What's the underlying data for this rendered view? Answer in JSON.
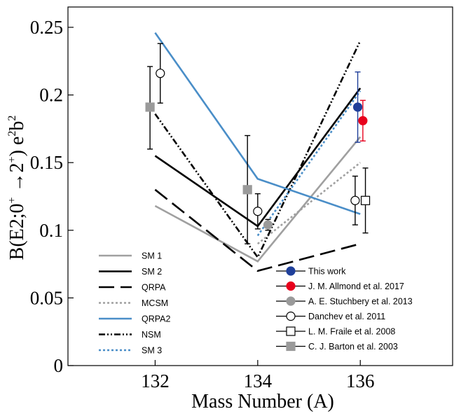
{
  "chart_data": {
    "type": "line",
    "xlabel": "Mass Number (A)",
    "ylabel_parts": {
      "prefix": "B(E2;0",
      "sup1": "+",
      "arrow": " →2",
      "sup2": "+",
      "mid": ") e",
      "sup3": "2",
      "b": "b",
      "sup4": "2"
    },
    "xlim": [
      130.3,
      137.8
    ],
    "ylim": [
      0,
      0.265
    ],
    "xticks": [
      {
        "value": 132,
        "label": "132"
      },
      {
        "value": 134,
        "label": "134"
      },
      {
        "value": 136,
        "label": "136"
      }
    ],
    "yticks": [
      {
        "value": 0,
        "label": "0"
      },
      {
        "value": 0.05,
        "label": "0.05"
      },
      {
        "value": 0.1,
        "label": "0.1"
      },
      {
        "value": 0.15,
        "label": "0.15"
      },
      {
        "value": 0.2,
        "label": "0.2"
      },
      {
        "value": 0.25,
        "label": "0.25"
      }
    ],
    "grid": false,
    "theory_series": [
      {
        "name": "SM 1",
        "color": "#a0a0a0",
        "dash": "",
        "x": [
          132,
          134,
          136
        ],
        "y": [
          0.118,
          0.077,
          0.169
        ]
      },
      {
        "name": "SM 2",
        "color": "#000000",
        "dash": "",
        "x": [
          132,
          134,
          136
        ],
        "y": [
          0.155,
          0.103,
          0.205
        ]
      },
      {
        "name": "QRPA",
        "color": "#000000",
        "dash": "22,9",
        "x": [
          132,
          134,
          136
        ],
        "y": [
          0.13,
          0.07,
          0.09
        ]
      },
      {
        "name": "MCSM",
        "color": "#a0a0a0",
        "dash": "3,3",
        "x": [
          134,
          136
        ],
        "y": [
          0.09,
          0.15
        ]
      },
      {
        "name": "QRPA2",
        "color": "#4a8ec8",
        "dash": "",
        "x": [
          132,
          134,
          136
        ],
        "y": [
          0.246,
          0.138,
          0.112
        ]
      },
      {
        "name": "NSM",
        "color": "#000000",
        "dash": "9,3,2,3,2,3",
        "x": [
          132,
          134,
          136
        ],
        "y": [
          0.186,
          0.08,
          0.24
        ]
      },
      {
        "name": "SM 3",
        "color": "#4a8ec8",
        "dash": "3,3",
        "x": [
          134,
          136
        ],
        "y": [
          0.096,
          0.203
        ]
      }
    ],
    "experimental_series": [
      {
        "name": "This work",
        "marker": "circle",
        "fill": "#1f3f9a",
        "stroke": "#1f3f9a",
        "errcolor": "#1f3f9a",
        "points": [
          {
            "x": 135.95,
            "y": 0.191,
            "lo": 0.165,
            "hi": 0.217
          }
        ]
      },
      {
        "name": "J. M. Allmond et al. 2017",
        "marker": "circle",
        "fill": "#e8001c",
        "stroke": "#e8001c",
        "errcolor": "#e8001c",
        "points": [
          {
            "x": 136.05,
            "y": 0.181,
            "lo": 0.166,
            "hi": 0.196
          }
        ]
      },
      {
        "name": "A. E. Stuchbery et al. 2013",
        "marker": "circle",
        "fill": "#9a9a9a",
        "stroke": "#9a9a9a",
        "errcolor": "#000000",
        "points": [
          {
            "x": 134.2,
            "y": 0.104,
            "lo": 0.1,
            "hi": 0.108
          }
        ]
      },
      {
        "name": "Danchev et al. 2011",
        "marker": "circle",
        "fill": "#ffffff",
        "stroke": "#000000",
        "errcolor": "#000000",
        "points": [
          {
            "x": 132.1,
            "y": 0.216,
            "lo": 0.194,
            "hi": 0.238
          },
          {
            "x": 134.0,
            "y": 0.114,
            "lo": 0.101,
            "hi": 0.127
          },
          {
            "x": 135.9,
            "y": 0.122,
            "lo": 0.104,
            "hi": 0.14
          }
        ]
      },
      {
        "name": "L. M. Fraile et al. 2008",
        "marker": "square",
        "fill": "#ffffff",
        "stroke": "#000000",
        "errcolor": "#000000",
        "points": [
          {
            "x": 136.1,
            "y": 0.122,
            "lo": 0.098,
            "hi": 0.146
          }
        ]
      },
      {
        "name": "C. J. Barton et al. 2003",
        "marker": "square",
        "fill": "#9a9a9a",
        "stroke": "#9a9a9a",
        "errcolor": "#000000",
        "points": [
          {
            "x": 131.9,
            "y": 0.191,
            "lo": 0.16,
            "hi": 0.221
          },
          {
            "x": 133.8,
            "y": 0.13,
            "lo": 0.09,
            "hi": 0.17
          }
        ]
      }
    ]
  }
}
